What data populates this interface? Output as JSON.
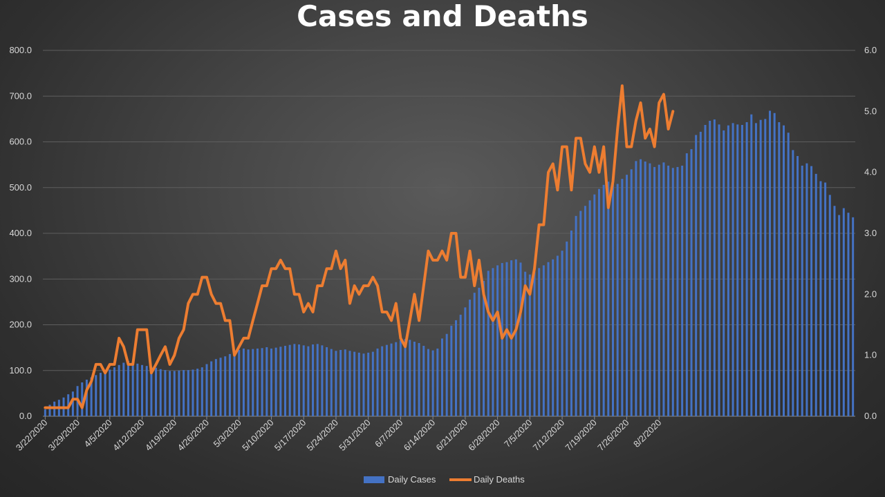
{
  "chart_data": {
    "type": "bar",
    "title": "Cases and Deaths",
    "xlabel": "",
    "ylabel": "",
    "y2label": "",
    "ylim": [
      0,
      800
    ],
    "y2lim": [
      0,
      6
    ],
    "y_ticks": [
      "0.0",
      "100.0",
      "200.0",
      "300.0",
      "400.0",
      "500.0",
      "600.0",
      "700.0",
      "800.0"
    ],
    "y2_ticks": [
      "0.0",
      "1.0",
      "2.0",
      "3.0",
      "4.0",
      "5.0",
      "6.0"
    ],
    "x_tick_labels": [
      "3/22/2020",
      "3/29/2020",
      "4/5/2020",
      "4/12/2020",
      "4/19/2020",
      "4/26/2020",
      "5/3/2020",
      "5/10/2020",
      "5/17/2020",
      "5/24/2020",
      "5/31/2020",
      "6/7/2020",
      "6/14/2020",
      "6/21/2020",
      "6/28/2020",
      "7/5/2020",
      "7/12/2020",
      "7/19/2020",
      "7/26/2020",
      "8/2/2020"
    ],
    "grid": true,
    "legend_position": "bottom",
    "start_date": "3/22/2020",
    "series": [
      {
        "name": "Daily Cases",
        "type": "bar",
        "axis": "left",
        "color": "#4472c4",
        "values": [
          15,
          25,
          32,
          36,
          41,
          48,
          54,
          66,
          74,
          80,
          85,
          90,
          95,
          98,
          102,
          107,
          112,
          117,
          121,
          119,
          115,
          112,
          110,
          108,
          106,
          103,
          101,
          99,
          99,
          100,
          101,
          101,
          102,
          104,
          107,
          114,
          120,
          125,
          128,
          131,
          136,
          141,
          145,
          148,
          146,
          147,
          148,
          149,
          151,
          148,
          150,
          152,
          154,
          156,
          158,
          157,
          155,
          153,
          157,
          158,
          155,
          151,
          147,
          143,
          145,
          146,
          143,
          141,
          139,
          137,
          139,
          141,
          148,
          153,
          156,
          159,
          162,
          166,
          169,
          167,
          163,
          160,
          154,
          147,
          144,
          148,
          170,
          180,
          198,
          210,
          222,
          238,
          255,
          270,
          281,
          296,
          318,
          324,
          330,
          335,
          337,
          341,
          343,
          336,
          316,
          310,
          316,
          324,
          330,
          337,
          343,
          351,
          362,
          382,
          406,
          438,
          449,
          460,
          472,
          485,
          497,
          506,
          513,
          517,
          508,
          519,
          528,
          540,
          558,
          562,
          557,
          553,
          545,
          550,
          555,
          548,
          543,
          545,
          548,
          575,
          584,
          615,
          622,
          637,
          646,
          649,
          638,
          625,
          636,
          641,
          638,
          637,
          643,
          660,
          641,
          648,
          650,
          668,
          663,
          643,
          636,
          620,
          582,
          569,
          548,
          553,
          547,
          530,
          514,
          511,
          484,
          460,
          440,
          455,
          445,
          435
        ]
      },
      {
        "name": "Daily Deaths",
        "type": "line",
        "axis": "right",
        "color": "#ed7d31",
        "values": [
          0.14,
          0.14,
          0.14,
          0.14,
          0.14,
          0.14,
          0.28,
          0.28,
          0.14,
          0.43,
          0.57,
          0.85,
          0.85,
          0.71,
          0.85,
          0.85,
          1.28,
          1.14,
          0.85,
          0.85,
          1.42,
          1.42,
          1.42,
          0.71,
          0.85,
          1.0,
          1.14,
          0.85,
          1.0,
          1.28,
          1.42,
          1.85,
          2.0,
          2.0,
          2.28,
          2.28,
          2.0,
          1.85,
          1.85,
          1.57,
          1.57,
          1.0,
          1.14,
          1.28,
          1.28,
          1.57,
          1.85,
          2.14,
          2.14,
          2.42,
          2.42,
          2.56,
          2.42,
          2.42,
          2.0,
          2.0,
          1.71,
          1.85,
          1.71,
          2.14,
          2.14,
          2.42,
          2.42,
          2.71,
          2.42,
          2.56,
          1.85,
          2.14,
          2.0,
          2.14,
          2.14,
          2.28,
          2.14,
          1.71,
          1.71,
          1.57,
          1.85,
          1.28,
          1.14,
          1.57,
          2.0,
          1.57,
          2.14,
          2.71,
          2.56,
          2.56,
          2.71,
          2.56,
          3.0,
          3.0,
          2.28,
          2.28,
          2.71,
          2.14,
          2.56,
          2.0,
          1.71,
          1.57,
          1.71,
          1.28,
          1.42,
          1.28,
          1.42,
          1.71,
          2.14,
          2.0,
          2.42,
          3.14,
          3.14,
          4.0,
          4.14,
          3.71,
          4.42,
          4.42,
          3.71,
          4.56,
          4.56,
          4.14,
          4.0,
          4.42,
          4.0,
          4.42,
          3.42,
          3.85,
          4.71,
          5.42,
          4.42,
          4.42,
          4.85,
          5.14,
          4.56,
          4.71,
          4.42,
          5.14,
          5.28,
          4.71,
          5.0
        ]
      }
    ]
  }
}
